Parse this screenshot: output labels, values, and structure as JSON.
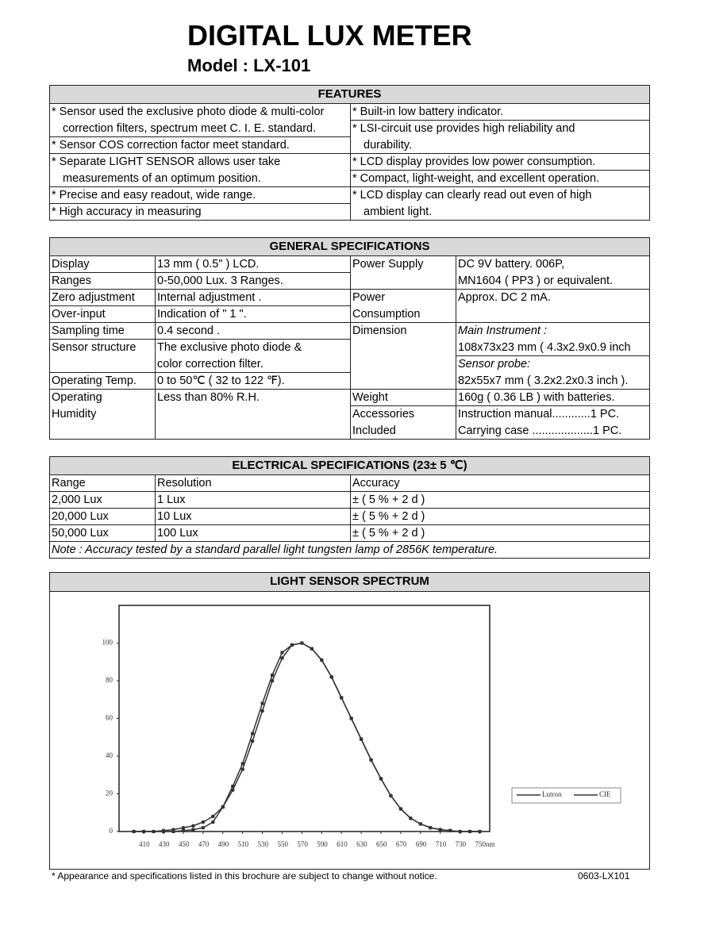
{
  "header": {
    "title": "DIGITAL LUX METER",
    "model": "Model : LX-101"
  },
  "features": {
    "title": "FEATURES",
    "left": [
      [
        "* Sensor used the exclusive photo diode & multi-color",
        "correction filters, spectrum meet C. I. E. standard."
      ],
      [
        "*  Sensor COS correction factor meet standard."
      ],
      [
        "* Separate LIGHT SENSOR allows user take",
        "measurements of an optimum position."
      ],
      [
        "* Precise and easy readout, wide range."
      ],
      [
        "* High accuracy in measuring"
      ]
    ],
    "right": [
      [
        "* Built-in low battery indicator."
      ],
      [
        "* LSI-circuit use provides high reliability and",
        "durability."
      ],
      [
        "* LCD display provides low power consumption."
      ],
      [
        "* Compact, light-weight, and excellent operation."
      ],
      [
        "* LCD display can clearly read out even of high",
        "ambient light."
      ]
    ]
  },
  "general_specs": {
    "title": "GENERAL SPECIFICATIONS",
    "left": [
      {
        "label": [
          "Display"
        ],
        "value": [
          "13 mm ( 0.5\" ) LCD."
        ]
      },
      {
        "label": [
          "Ranges"
        ],
        "value": [
          "0-50,000 Lux. 3 Ranges."
        ]
      },
      {
        "label": [
          "Zero adjustment"
        ],
        "value": [
          "Internal adjustment ."
        ]
      },
      {
        "label": [
          "Over-input"
        ],
        "value": [
          "Indication of \" 1 \"."
        ]
      },
      {
        "label": [
          "Sampling time"
        ],
        "value": [
          "0.4 second ."
        ]
      },
      {
        "label": [
          "Sensor structure"
        ],
        "value": [
          "The exclusive photo diode &",
          "color correction filter."
        ]
      },
      {
        "label": [
          "Operating Temp."
        ],
        "value": [
          "0 to 50℃ ( 32 to 122 ℉)."
        ]
      },
      {
        "label": [
          "Operating",
          "Humidity"
        ],
        "value": [
          "Less than 80% R.H."
        ]
      }
    ],
    "right": [
      {
        "label": [
          "Power Supply"
        ],
        "value": [
          "DC 9V battery. 006P,",
          "MN1604 ( PP3 ) or equivalent."
        ]
      },
      {
        "label": [
          "Power",
          "Consumption"
        ],
        "value": [
          "Approx. DC 2 mA."
        ]
      },
      {
        "label": [
          "Dimension"
        ],
        "main": [
          "Main Instrument :",
          "108x73x23 mm ( 4.3x2.9x0.9 inch"
        ],
        "probe": [
          "Sensor probe:",
          "82x55x7 mm ( 3.2x2.2x0.3 inch )."
        ]
      },
      {
        "label": [
          "Weight"
        ],
        "value": [
          "160g ( 0.36 LB ) with batteries."
        ]
      },
      {
        "label": [
          "Accessories",
          "Included"
        ],
        "value": [
          "Instruction manual............1 PC.",
          "Carrying case ...................1 PC."
        ]
      }
    ]
  },
  "electrical_specs": {
    "title": "ELECTRICAL SPECIFICATIONS (23± 5 ℃)",
    "columns": [
      "Range",
      "Resolution",
      "Accuracy"
    ],
    "rows": [
      [
        "2,000 Lux",
        "1 Lux",
        "± ( 5 % + 2 d )"
      ],
      [
        "20,000 Lux",
        "10 Lux",
        "± ( 5 % + 2 d )"
      ],
      [
        "50,000 Lux",
        "100 Lux",
        "± ( 5 % + 2 d )"
      ]
    ],
    "note": "Note : Accuracy tested by a standard parallel light tungsten lamp of 2856K temperature."
  },
  "spectrum": {
    "title": "LIGHT SENSOR SPECTRUM"
  },
  "chart_data": {
    "type": "line",
    "x": [
      400,
      410,
      420,
      430,
      440,
      450,
      460,
      470,
      480,
      490,
      500,
      510,
      520,
      530,
      540,
      550,
      560,
      570,
      580,
      590,
      600,
      610,
      620,
      630,
      640,
      650,
      660,
      670,
      680,
      690,
      700,
      710,
      720,
      730,
      740,
      750
    ],
    "series": [
      {
        "name": "Lutron",
        "color": "#333333",
        "values": [
          0,
          0,
          0,
          0.5,
          1,
          2,
          3,
          5,
          8,
          13,
          22,
          33,
          48,
          64,
          80,
          92,
          99,
          100,
          97,
          91,
          82,
          71,
          60,
          49,
          38,
          28,
          19,
          12,
          7,
          4,
          2,
          1,
          0.5,
          0,
          0,
          0
        ]
      },
      {
        "name": "CIE",
        "color": "#333333",
        "values": [
          0,
          0,
          0,
          0,
          0,
          0.5,
          1,
          2,
          5,
          13,
          24,
          36,
          52,
          68,
          83,
          95,
          99,
          100,
          97,
          91,
          82,
          71,
          60,
          49,
          38,
          28,
          19,
          12,
          7,
          4,
          2,
          1,
          0.5,
          0,
          0,
          0
        ]
      }
    ],
    "xlim": [
      385,
      760
    ],
    "ylim": [
      0,
      120
    ],
    "xticks": [
      410,
      430,
      450,
      470,
      490,
      510,
      530,
      550,
      570,
      590,
      610,
      630,
      650,
      670,
      690,
      710,
      730,
      {
        "value": 750,
        "label": "750nm"
      }
    ],
    "yticks": [
      0,
      20,
      40,
      60,
      80,
      100
    ],
    "legend": "right",
    "grid": false
  },
  "footer": {
    "note": "* Appearance and specifications listed in this brochure are subject to change without notice.",
    "code": "0603-LX101"
  }
}
